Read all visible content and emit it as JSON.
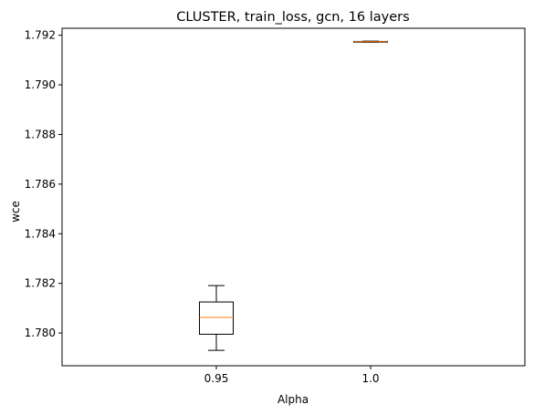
{
  "chart_data": {
    "type": "box",
    "title": "CLUSTER, train_loss, gcn, 16 layers",
    "xlabel": "Alpha",
    "ylabel": "wce",
    "categories": [
      "0.95",
      "1.0"
    ],
    "boxes": [
      {
        "category": "0.95",
        "whisker_low": 1.7793,
        "q1": 1.77995,
        "median": 1.78063,
        "q3": 1.78125,
        "whisker_high": 1.78191
      },
      {
        "category": "1.0",
        "whisker_low": 1.79172,
        "q1": 1.79173,
        "median": 1.79174,
        "q3": 1.79175,
        "whisker_high": 1.79176
      }
    ],
    "ylim": [
      1.77868,
      1.79228
    ],
    "yticks": [
      1.78,
      1.782,
      1.784,
      1.786,
      1.788,
      1.79,
      1.792
    ],
    "ytick_labels": [
      "1.780",
      "1.782",
      "1.784",
      "1.786",
      "1.788",
      "1.790",
      "1.792"
    ],
    "grid": false,
    "colors": {
      "box": "#000000",
      "median": "#ff7f0e"
    }
  }
}
